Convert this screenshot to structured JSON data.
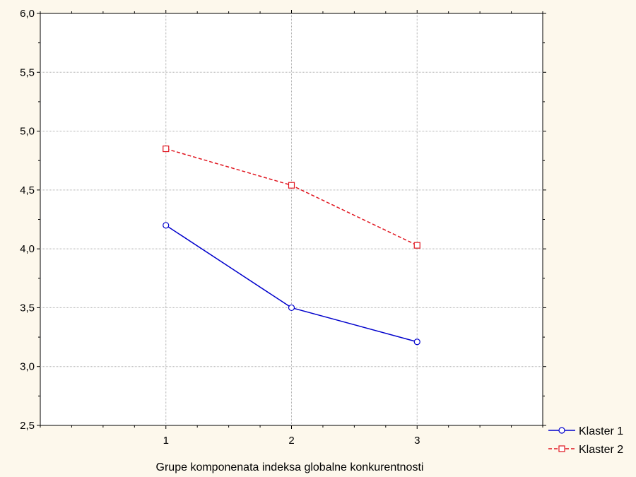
{
  "chart_data": {
    "type": "line",
    "xlabel": "Grupe komponenata indeksa globalne konkurentnosti",
    "ylabel": "",
    "x": [
      1,
      2,
      3
    ],
    "xticks": [
      "1",
      "2",
      "3"
    ],
    "xlim": [
      0,
      4
    ],
    "ylim": [
      2.5,
      6.0
    ],
    "yticks": [
      "2,5",
      "3,0",
      "3,5",
      "4,0",
      "4,5",
      "5,0",
      "5,5",
      "6,0"
    ],
    "grid": true,
    "legend_position": "bottom-right",
    "series": [
      {
        "name": "Klaster 1",
        "values": [
          4.2,
          3.5,
          3.21
        ],
        "color": "#0000cc",
        "marker": "circle",
        "line": "solid"
      },
      {
        "name": "Klaster 2",
        "values": [
          4.85,
          4.54,
          4.03
        ],
        "color": "#e0141e",
        "marker": "square",
        "line": "dashed"
      }
    ]
  }
}
